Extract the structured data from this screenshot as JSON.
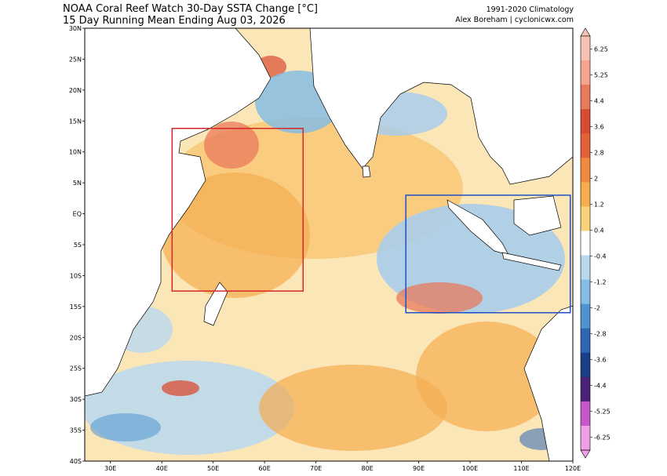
{
  "title": "NOAA Coral Reef Watch 30-Day SSTA Change [°C]",
  "subtitle": "15 Day Running Mean Ending Aug 03, 2026",
  "credit_line1": "1991-2020 Climatology",
  "credit_line2": "Alex Boreham | cyclonicwx.com",
  "map": {
    "extent": {
      "lon_min": 25,
      "lon_max": 120,
      "lat_min": -40,
      "lat_max": 30
    },
    "lat_ticks": [
      {
        "value": 30,
        "label": "30N"
      },
      {
        "value": 25,
        "label": "25N"
      },
      {
        "value": 20,
        "label": "20N"
      },
      {
        "value": 15,
        "label": "15N"
      },
      {
        "value": 10,
        "label": "10N"
      },
      {
        "value": 5,
        "label": "5N"
      },
      {
        "value": 0,
        "label": "EQ"
      },
      {
        "value": -5,
        "label": "5S"
      },
      {
        "value": -10,
        "label": "10S"
      },
      {
        "value": -15,
        "label": "15S"
      },
      {
        "value": -20,
        "label": "20S"
      },
      {
        "value": -25,
        "label": "25S"
      },
      {
        "value": -30,
        "label": "30S"
      },
      {
        "value": -35,
        "label": "35S"
      },
      {
        "value": -40,
        "label": "40S"
      }
    ],
    "lon_ticks": [
      {
        "value": 30,
        "label": "30E"
      },
      {
        "value": 40,
        "label": "40E"
      },
      {
        "value": 50,
        "label": "50E"
      },
      {
        "value": 60,
        "label": "60E"
      },
      {
        "value": 70,
        "label": "70E"
      },
      {
        "value": 80,
        "label": "80E"
      },
      {
        "value": 90,
        "label": "90E"
      },
      {
        "value": 100,
        "label": "100E"
      },
      {
        "value": 110,
        "label": "110E"
      },
      {
        "value": 120,
        "label": "120E"
      }
    ],
    "boxes": [
      {
        "name": "western-box",
        "color": "#d62728",
        "lon": [
          42,
          67.5
        ],
        "lat": [
          -12.5,
          13.8
        ]
      },
      {
        "name": "eastern-box",
        "color": "#1f4fc8",
        "lon": [
          87.5,
          119.5
        ],
        "lat": [
          -16,
          3
        ]
      }
    ]
  },
  "colorbar": {
    "labels": [
      "6.25",
      "5.25",
      "4.4",
      "3.6",
      "2.8",
      "2",
      "1.2",
      "0.4",
      "-0.4",
      "-1.2",
      "-2",
      "-2.8",
      "-3.6",
      "-4.4",
      "-5.25",
      "-6.25"
    ],
    "colors": [
      "#f7c2b4",
      "#f3a58f",
      "#e9795b",
      "#d94c32",
      "#e4623a",
      "#ef8a3f",
      "#f5ad4f",
      "#f9d27a",
      "#ffffff",
      "#b9d8ee",
      "#85bce3",
      "#4f93cf",
      "#2f66b4",
      "#1a3f86",
      "#4a2277",
      "#c458c8",
      "#f0a0e6"
    ]
  },
  "colors": {
    "land": "#ffffff",
    "warm_light": "#f9d27a",
    "warm": "#f5ad4f",
    "warm_strong": "#e9795b",
    "cool_light": "#b9d8ee",
    "cool": "#85bce3",
    "cool_strong": "#4f93cf"
  }
}
